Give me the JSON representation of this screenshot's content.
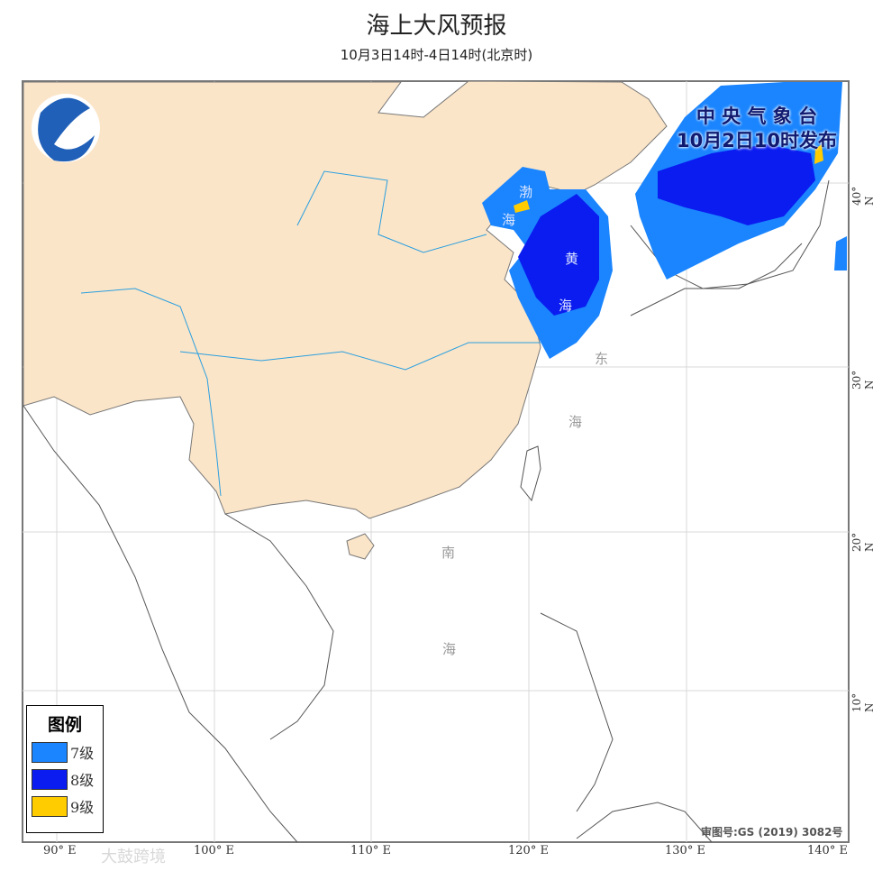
{
  "header": {
    "title": "海上大风预报",
    "subtitle": "10月3日14时-4日14时(北京时)"
  },
  "issuer": {
    "line1": "中 央 气 象 台",
    "line2": "10月2日10时发布"
  },
  "legend": {
    "title": "图例",
    "items": [
      {
        "label": "7级",
        "color": "#1a85ff"
      },
      {
        "label": "8级",
        "color": "#0a1cf0"
      },
      {
        "label": "9级",
        "color": "#ffcc00"
      }
    ]
  },
  "approval": "审图号:GS (2019) 3082号",
  "lon_labels": [
    "90° E",
    "100° E",
    "110° E",
    "120° E",
    "130° E",
    "140° E"
  ],
  "lat_labels": [
    "40° N",
    "30° N",
    "20° N",
    "10° N"
  ],
  "sea_labels": {
    "bohai1": "渤",
    "bohai2": "海",
    "yellow1": "黄",
    "yellow2": "海",
    "east1": "东",
    "east2": "海",
    "south1": "南",
    "south2": "海"
  },
  "watermark": "大鼓跨境",
  "colors": {
    "land": "#fbe5c8",
    "level7": "#1a85ff",
    "level8": "#0a1cf0",
    "level9": "#ffcc00"
  }
}
